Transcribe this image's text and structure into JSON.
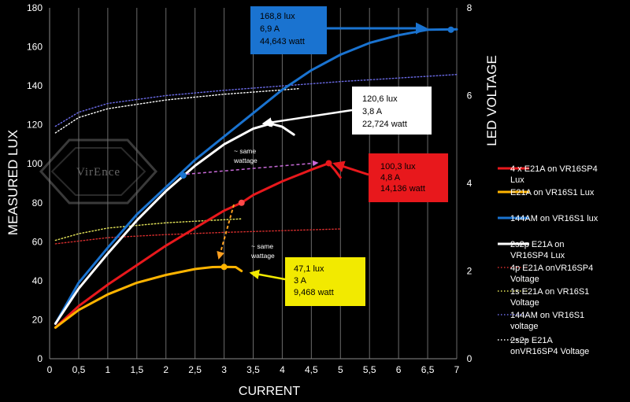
{
  "chart_data": {
    "type": "line",
    "xlabel": "CURRENT",
    "ylabel": "MEASURED LUX",
    "y2label": "LED VOLTAGE",
    "xlim": [
      0,
      7
    ],
    "ylim": [
      0,
      180
    ],
    "y2lim": [
      0,
      8
    ],
    "x_ticks": [
      "0",
      "0,5",
      "1",
      "1,5",
      "2",
      "2,5",
      "3",
      "3,5",
      "4",
      "4,5",
      "5",
      "5,5",
      "6",
      "6,5",
      "7"
    ],
    "y_ticks": [
      "0",
      "20",
      "40",
      "60",
      "80",
      "100",
      "120",
      "140",
      "160",
      "180"
    ],
    "y2_ticks": [
      "0",
      "2",
      "4",
      "6",
      "8"
    ],
    "grid": "vertical",
    "legend_position": "right",
    "series": [
      {
        "name": "4 x E21A on VR16SP4 Lux",
        "axis": "left",
        "color": "#e8181c",
        "dash": "solid",
        "x": [
          0.1,
          0.5,
          1,
          1.5,
          2,
          2.5,
          3,
          3.3,
          3.5,
          4,
          4.5,
          4.8,
          4.9,
          5.0
        ],
        "y": [
          16,
          27,
          38,
          48,
          58,
          67,
          76,
          80,
          84,
          91,
          97,
          100.3,
          97,
          93
        ]
      },
      {
        "name": "E21A on VR16S1 Lux",
        "axis": "left",
        "color": "#ffb400",
        "dash": "solid",
        "x": [
          0.1,
          0.5,
          1,
          1.5,
          2,
          2.5,
          2.8,
          3,
          3.2,
          3.3
        ],
        "y": [
          16,
          25,
          33,
          39,
          43,
          46,
          47,
          47.1,
          47,
          45
        ]
      },
      {
        "name": "144AM on VR16S1 lux",
        "axis": "left",
        "color": "#1a73d0",
        "dash": "solid",
        "x": [
          0.1,
          0.5,
          1,
          1.5,
          2,
          2.5,
          3,
          3.5,
          4,
          4.5,
          5,
          5.5,
          6,
          6.5,
          7
        ],
        "y": [
          18,
          39,
          57,
          74,
          88,
          102,
          114,
          126,
          138,
          148,
          156,
          162,
          166,
          168.8,
          169
        ]
      },
      {
        "name": "2s2p E21A on VR16SP4 Lux",
        "axis": "left",
        "color": "#ffffff",
        "dash": "solid",
        "x": [
          0.1,
          0.5,
          1,
          1.5,
          2,
          2.5,
          3,
          3.5,
          3.8,
          4,
          4.2
        ],
        "y": [
          18,
          36,
          54,
          71,
          86,
          99,
          110,
          118,
          120.6,
          119,
          115
        ]
      },
      {
        "name": "4p E21A onVR16SP4 Voltage",
        "axis": "right",
        "color": "#d42d2d",
        "dash": "dotted",
        "x": [
          0.1,
          1,
          2,
          3,
          4,
          5
        ],
        "y": [
          2.62,
          2.76,
          2.83,
          2.88,
          2.92,
          2.96
        ]
      },
      {
        "name": "1s E21A on VR16S1 Voltage",
        "axis": "right",
        "color": "#e6e659",
        "dash": "dotted",
        "x": [
          0.1,
          0.5,
          1,
          2,
          3,
          3.3
        ],
        "y": [
          2.7,
          2.85,
          2.98,
          3.1,
          3.17,
          3.19
        ]
      },
      {
        "name": "144AM on VR16S1 voltage",
        "axis": "right",
        "color": "#6a6ae6",
        "dash": "dotted",
        "x": [
          0.1,
          0.5,
          1,
          2,
          3,
          4,
          5,
          6,
          7
        ],
        "y": [
          5.3,
          5.62,
          5.82,
          6.0,
          6.12,
          6.22,
          6.32,
          6.4,
          6.48
        ]
      },
      {
        "name": "2s2p E21A onVR16SP4 Voltage",
        "axis": "right",
        "color": "#ffffff",
        "dash": "dotted",
        "x": [
          0.1,
          0.5,
          1,
          2,
          3,
          4,
          4.3
        ],
        "y": [
          5.15,
          5.5,
          5.7,
          5.9,
          6.03,
          6.13,
          6.16
        ]
      }
    ],
    "markers": [
      {
        "x": 6.9,
        "y": 168.8,
        "color": "#1a73d0"
      },
      {
        "x": 3.3,
        "y": 80,
        "color": "#ff4a4a"
      },
      {
        "x": 4.8,
        "y": 100.3,
        "color": "#e8181c"
      },
      {
        "x": 3.8,
        "y": 120.6,
        "color": "#ffffff"
      },
      {
        "x": 3.0,
        "y": 47.1,
        "color": "#ffb400"
      },
      {
        "x": 2.3,
        "y": 94,
        "color": "#1a73d0"
      }
    ],
    "annotations": [
      {
        "lines": [
          "168,8 lux",
          "6,9 A",
          "44,643 watt"
        ],
        "background": "#1a73d0",
        "text_color": "#000000"
      },
      {
        "lines": [
          "120,6 lux",
          "3,8 A",
          "22,724 watt"
        ],
        "background": "#ffffff",
        "text_color": "#000000"
      },
      {
        "lines": [
          "100,3 lux",
          "4,8 A",
          "14,136 watt"
        ],
        "background": "#e8181c",
        "text_color": "#000000"
      },
      {
        "lines": [
          "47,1 lux",
          "3 A",
          "9,468 watt"
        ],
        "background": "#f2ea00",
        "text_color": "#000000"
      }
    ],
    "notes": [
      {
        "lines": [
          "~ same",
          "wattage"
        ]
      },
      {
        "lines": [
          "~ same",
          "wattage"
        ]
      }
    ],
    "logo": "VirEnce"
  }
}
